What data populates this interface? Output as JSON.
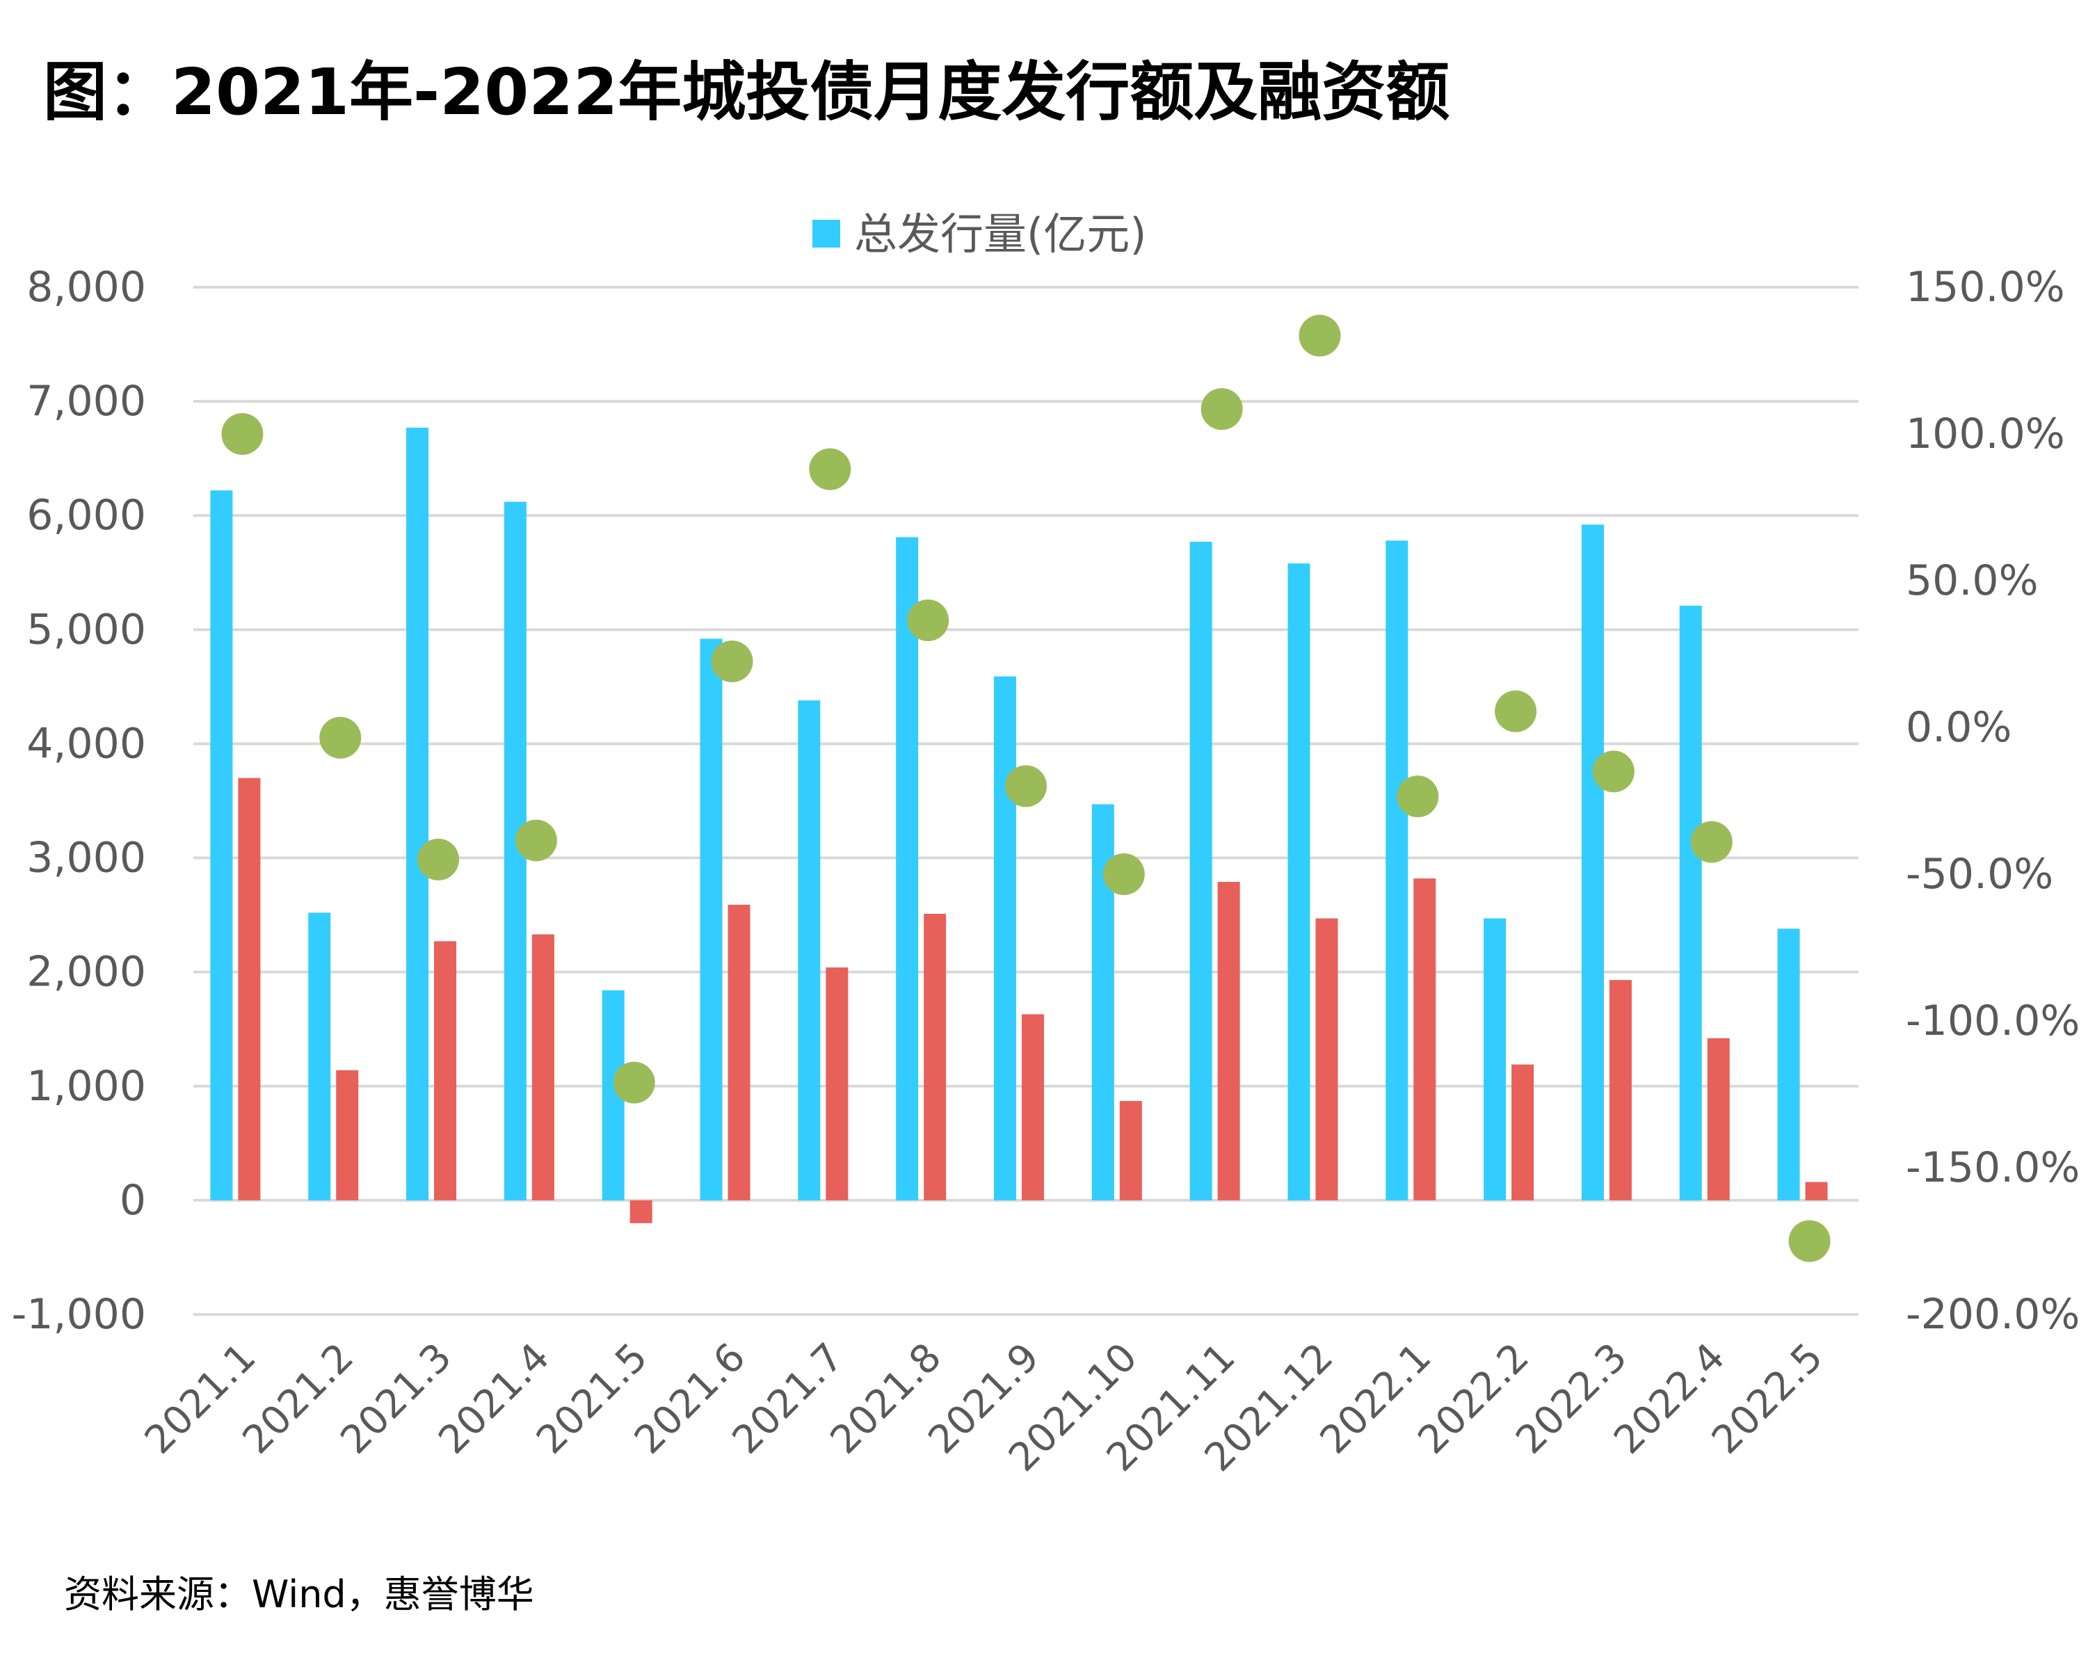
{
  "title": "图：2021年-2022年城投债月度发行额及融资额",
  "source": "资料来源：Wind，惠誉博华",
  "chart_data": {
    "type": "bar",
    "title": "图：2021年-2022年城投债月度发行额及融资额",
    "categories": [
      "2021.1",
      "2021.2",
      "2021.3",
      "2021.4",
      "2021.5",
      "2021.6",
      "2021.7",
      "2021.8",
      "2021.9",
      "2021.10",
      "2021.11",
      "2021.12",
      "2022.1",
      "2022.2",
      "2022.3",
      "2022.4",
      "2022.5"
    ],
    "series": [
      {
        "name": "总发行量(亿元)",
        "type": "bar",
        "axis": "left",
        "color": "#33CCFF",
        "values": [
          6220,
          2520,
          6770,
          6120,
          1840,
          4920,
          4380,
          5810,
          4590,
          3470,
          5770,
          5580,
          5780,
          2470,
          5920,
          5210,
          2380
        ]
      },
      {
        "name": "",
        "type": "bar",
        "axis": "left",
        "color": "#E8605A",
        "values": [
          3700,
          1140,
          2270,
          2330,
          -200,
          2590,
          2040,
          2510,
          1630,
          870,
          2790,
          2470,
          2820,
          1190,
          1930,
          1420,
          160
        ]
      },
      {
        "name": "",
        "type": "scatter",
        "axis": "right",
        "color": "#9BBB59",
        "values": [
          100.0,
          -3.5,
          -45.0,
          -38.5,
          -121.0,
          22.5,
          88.0,
          36.5,
          -20.0,
          -50.0,
          108.5,
          133.5,
          -23.5,
          5.5,
          -15.0,
          -39.0,
          -175.0
        ]
      }
    ],
    "y_left": {
      "lim": [
        -1000,
        8000
      ],
      "ticks": [
        -1000,
        0,
        1000,
        2000,
        3000,
        4000,
        5000,
        6000,
        7000,
        8000
      ],
      "tick_labels": [
        "-1,000",
        "0",
        "1,000",
        "2,000",
        "3,000",
        "4,000",
        "5,000",
        "6,000",
        "7,000",
        "8,000"
      ]
    },
    "y_right": {
      "lim": [
        -200,
        150
      ],
      "ticks": [
        -200,
        -150,
        -100,
        -50,
        0,
        50,
        100,
        150
      ],
      "tick_labels": [
        "-200.0%",
        "-150.0%",
        "-100.0%",
        "-50.0%",
        "0.0%",
        "50.0%",
        "100.0%",
        "150.0%"
      ]
    },
    "grid": true,
    "legend": {
      "position": "top-center",
      "entries": [
        "总发行量(亿元)"
      ]
    }
  }
}
